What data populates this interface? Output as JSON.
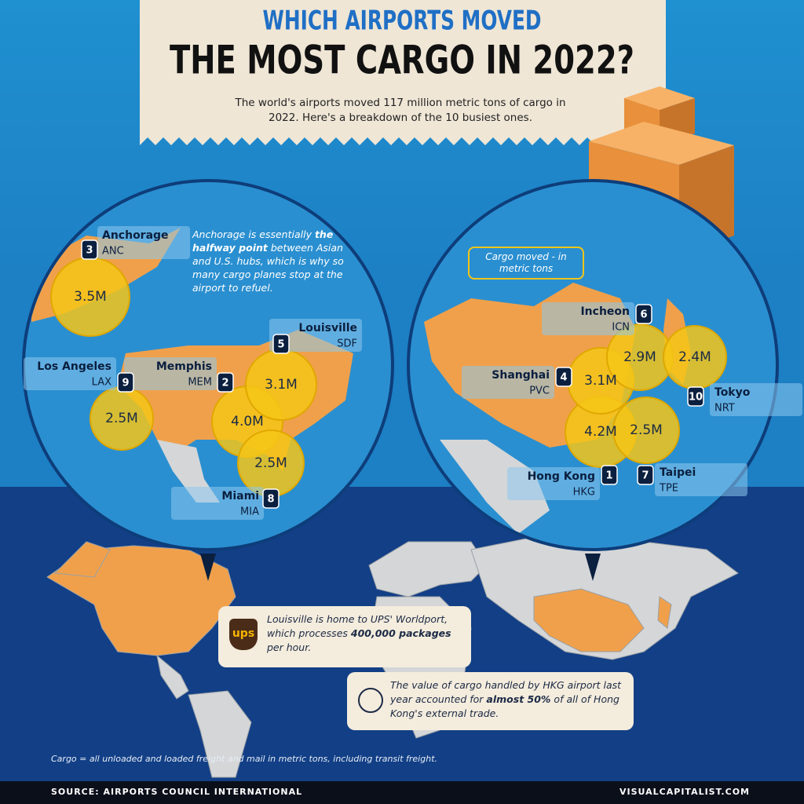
{
  "header": {
    "kicker": "WHICH AIRPORTS MOVED",
    "title": "THE MOST CARGO IN 2022?",
    "intro": "The world's airports moved 117 million metric tons of cargo in 2022. Here's a breakdown of the 10 busiest ones."
  },
  "airports": [
    {
      "rank": 1,
      "name": "Hong Kong",
      "code": "HKG",
      "cargo": "4.2M"
    },
    {
      "rank": 2,
      "name": "Memphis",
      "code": "MEM",
      "cargo": "4.0M"
    },
    {
      "rank": 3,
      "name": "Anchorage",
      "code": "ANC",
      "cargo": "3.5M"
    },
    {
      "rank": 4,
      "name": "Shanghai",
      "code": "PVC",
      "cargo": "3.1M"
    },
    {
      "rank": 5,
      "name": "Louisville",
      "code": "SDF",
      "cargo": "3.1M"
    },
    {
      "rank": 6,
      "name": "Incheon",
      "code": "ICN",
      "cargo": "2.9M"
    },
    {
      "rank": 7,
      "name": "Taipei",
      "code": "TPE",
      "cargo": "2.5M"
    },
    {
      "rank": 8,
      "name": "Miami",
      "code": "MIA",
      "cargo": "2.5M"
    },
    {
      "rank": 9,
      "name": "Los Angeles",
      "code": "LAX",
      "cargo": "2.5M"
    },
    {
      "rank": 10,
      "name": "Tokyo",
      "code": "NRT",
      "cargo": "2.4M"
    }
  ],
  "notes": {
    "anchorage": [
      "Anchorage is essentially ",
      "the halfway point",
      " between Asian and U.S. hubs, which is why so many cargo planes stop at the airport to refuel."
    ],
    "legend": "Cargo moved - in metric tons",
    "ups_logo": "ups",
    "ups": [
      "Louisville is home to UPS' Worldport, which processes ",
      "400,000 packages",
      " per hour."
    ],
    "hkg": [
      "The value of cargo handled by HKG airport last year accounted for ",
      "almost 50%",
      " of all of Hong Kong's external trade."
    ]
  },
  "footnote": "Cargo = all unloaded and loaded freight and mail in metric tons, including transit freight.",
  "source": "SOURCE: AIRPORTS COUNCIL INTERNATIONAL",
  "brand": "VISUALCAPITALIST.COM"
}
